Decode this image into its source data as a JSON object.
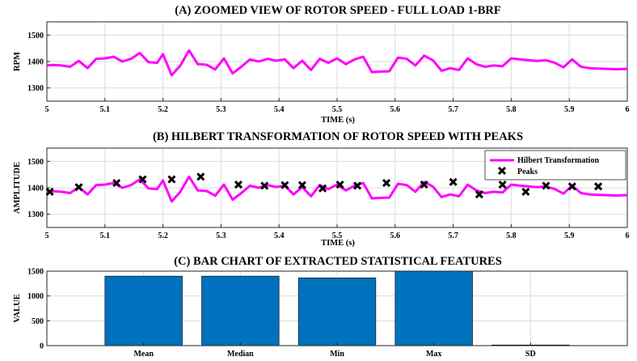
{
  "chart_data": [
    {
      "type": "line",
      "title": "(A) ZOOMED VIEW OF ROTOR SPEED - FULL LOAD 1-BRF",
      "xlabel": "TIME (s)",
      "ylabel": "RPM",
      "xlim": [
        5,
        6
      ],
      "ylim": [
        1250,
        1550
      ],
      "xticks": [
        "5",
        "5.1",
        "5.2",
        "5.3",
        "5.4",
        "5.5",
        "5.6",
        "5.7",
        "5.8",
        "5.9",
        "6"
      ],
      "yticks": [
        "1300",
        "1400",
        "1500"
      ],
      "grid": true,
      "line_color": "#ff00ff",
      "series": [
        {
          "x": [
            5.0,
            5.01,
            5.025,
            5.04,
            5.055,
            5.07,
            5.085,
            5.1,
            5.115,
            5.13,
            5.145,
            5.16,
            5.175,
            5.19,
            5.2,
            5.215,
            5.23,
            5.245,
            5.26,
            5.275,
            5.29,
            5.305,
            5.32,
            5.335,
            5.35,
            5.365,
            5.38,
            5.395,
            5.41,
            5.425,
            5.44,
            5.455,
            5.47,
            5.485,
            5.5,
            5.515,
            5.53,
            5.545,
            5.56,
            5.575,
            5.59,
            5.605,
            5.62,
            5.635,
            5.65,
            5.665,
            5.68,
            5.695,
            5.71,
            5.725,
            5.74,
            5.755,
            5.77,
            5.785,
            5.8,
            5.815,
            5.83,
            5.845,
            5.86,
            5.875,
            5.89,
            5.905,
            5.92,
            5.935,
            5.95,
            5.965,
            5.98,
            6.0
          ],
          "values": [
            1385,
            1387,
            1385,
            1380,
            1402,
            1375,
            1410,
            1412,
            1418,
            1400,
            1410,
            1432,
            1398,
            1395,
            1428,
            1348,
            1385,
            1442,
            1390,
            1388,
            1370,
            1412,
            1355,
            1380,
            1408,
            1400,
            1410,
            1403,
            1408,
            1375,
            1403,
            1368,
            1410,
            1395,
            1412,
            1390,
            1408,
            1418,
            1360,
            1362,
            1363,
            1415,
            1410,
            1385,
            1422,
            1405,
            1365,
            1375,
            1368,
            1412,
            1390,
            1380,
            1385,
            1382,
            1412,
            1408,
            1405,
            1402,
            1405,
            1395,
            1378,
            1408,
            1380,
            1375,
            1373,
            1372,
            1371,
            1372
          ]
        }
      ]
    },
    {
      "type": "line",
      "title": "(B) HILBERT TRANSFORMATION OF ROTOR SPEED WITH PEAKS",
      "xlabel": "TIME (s)",
      "ylabel": "AMPLITUDE",
      "xlim": [
        5,
        6
      ],
      "ylim": [
        1250,
        1550
      ],
      "xticks": [
        "5",
        "5.1",
        "5.2",
        "5.3",
        "5.4",
        "5.5",
        "5.6",
        "5.7",
        "5.8",
        "5.9",
        "6"
      ],
      "yticks": [
        "1300",
        "1400",
        "1500"
      ],
      "grid": true,
      "legend": {
        "placement": "top-right",
        "entries": [
          "Hilbert Transformation",
          "Peaks"
        ]
      },
      "line_color": "#ff00ff",
      "peaks": {
        "x": [
          5.005,
          5.055,
          5.12,
          5.165,
          5.215,
          5.265,
          5.33,
          5.375,
          5.41,
          5.44,
          5.475,
          5.505,
          5.535,
          5.585,
          5.65,
          5.7,
          5.745,
          5.785,
          5.825,
          5.86,
          5.905,
          5.95
        ],
        "values": [
          1385,
          1402,
          1418,
          1432,
          1432,
          1442,
          1412,
          1408,
          1410,
          1410,
          1398,
          1412,
          1408,
          1418,
          1412,
          1422,
          1375,
          1412,
          1385,
          1408,
          1405,
          1405
        ]
      }
    },
    {
      "type": "bar",
      "title": "(C) BAR CHART OF EXTRACTED STATISTICAL FEATURES",
      "xlabel": "",
      "ylabel": "VALUE",
      "ylim": [
        0,
        1500
      ],
      "yticks": [
        "0",
        "500",
        "1000",
        "1500"
      ],
      "categories": [
        "Mean",
        "Median",
        "Min",
        "Max",
        "SD"
      ],
      "values": [
        1400,
        1400,
        1365,
        1500,
        10
      ],
      "bar_color": "#0072bd",
      "grid": true
    }
  ]
}
